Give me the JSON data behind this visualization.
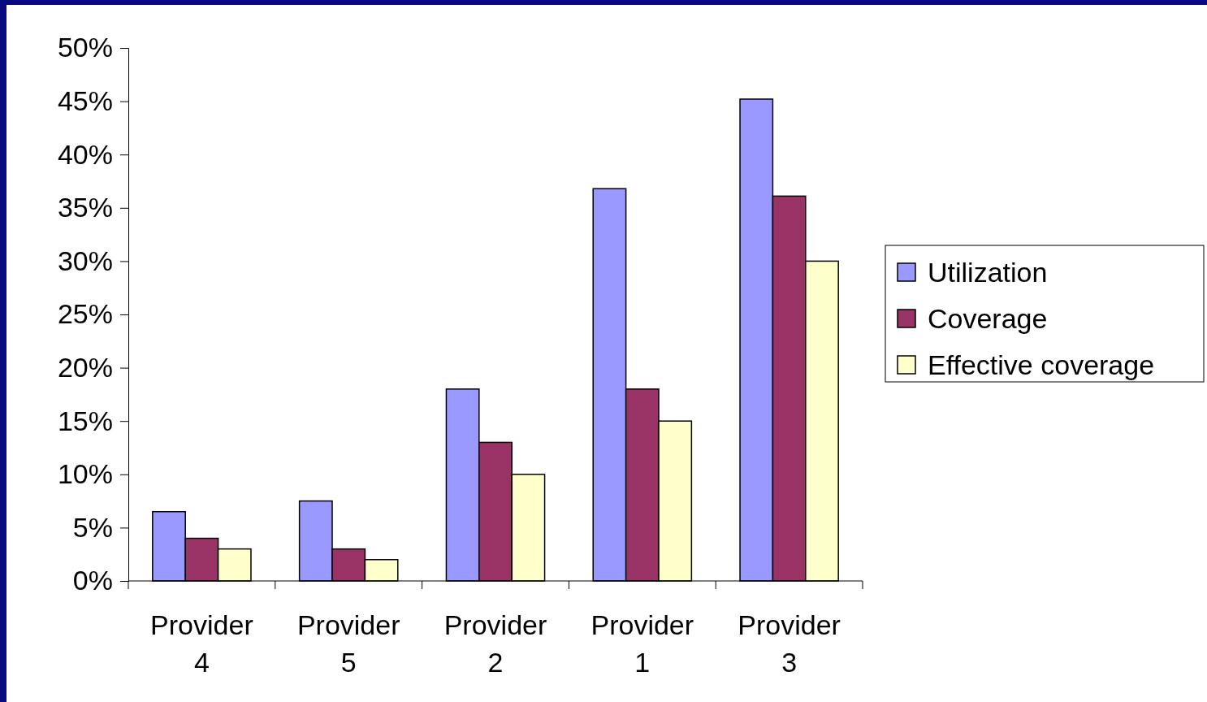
{
  "chart_data": {
    "type": "bar",
    "categories": [
      "Provider 4",
      "Provider 5",
      "Provider 2",
      "Provider 1",
      "Provider 3"
    ],
    "series": [
      {
        "name": "Utilization",
        "color": "#9999ff",
        "values": [
          6.5,
          7.5,
          18,
          36.8,
          45.2
        ]
      },
      {
        "name": "Coverage",
        "color": "#993366",
        "values": [
          4,
          3,
          13,
          18,
          36.1
        ]
      },
      {
        "name": "Effective coverage",
        "color": "#ffffcc",
        "values": [
          3,
          2,
          10,
          15,
          30
        ]
      }
    ],
    "ylim": [
      0,
      50
    ],
    "yticks": [
      {
        "value": 0,
        "label": "0%"
      },
      {
        "value": 5,
        "label": "5%"
      },
      {
        "value": 10,
        "label": "10%"
      },
      {
        "value": 15,
        "label": "15%"
      },
      {
        "value": 20,
        "label": "20%"
      },
      {
        "value": 25,
        "label": "25%"
      },
      {
        "value": 30,
        "label": "30%"
      },
      {
        "value": 35,
        "label": "35%"
      },
      {
        "value": 40,
        "label": "40%"
      },
      {
        "value": 45,
        "label": "45%"
      },
      {
        "value": 50,
        "label": "50%"
      }
    ],
    "legend": "right",
    "grid": false
  }
}
